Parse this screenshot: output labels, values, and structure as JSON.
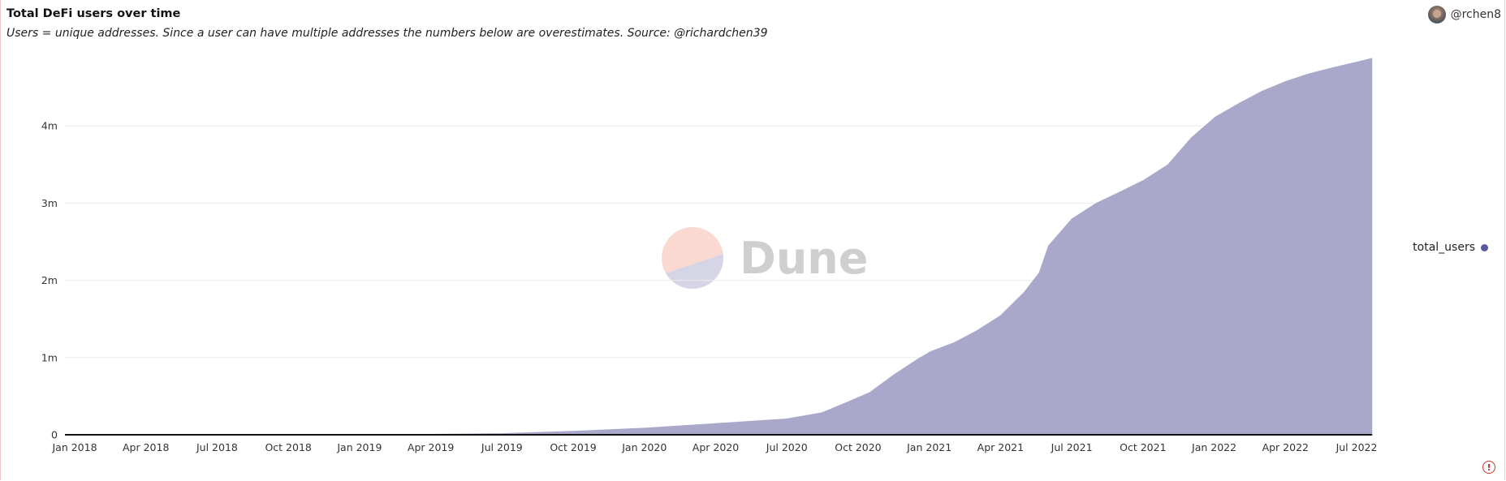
{
  "header": {
    "title": "Total DeFi users over time",
    "subtitle": "Users = unique addresses. Since a user can have multiple addresses the numbers below are overestimates. Source: @richardchen39",
    "author": "@rchen8"
  },
  "watermark": {
    "text": "Dune"
  },
  "legend": {
    "label": "total_users"
  },
  "colors": {
    "area": "#a9a8cb",
    "legend_dot": "#5b5b9e",
    "gridline": "#ececec",
    "baseline": "#111111",
    "alert": "#c0392b"
  },
  "chart_data": {
    "type": "area",
    "title": "Total DeFi users over time",
    "xlabel": "",
    "ylabel": "",
    "x_ticks": [
      "Jan 2018",
      "Apr 2018",
      "Jul 2018",
      "Oct 2018",
      "Jan 2019",
      "Apr 2019",
      "Jul 2019",
      "Oct 2019",
      "Jan 2020",
      "Apr 2020",
      "Jul 2020",
      "Oct 2020",
      "Jan 2021",
      "Apr 2021",
      "Jul 2021",
      "Oct 2021",
      "Jan 2022",
      "Apr 2022",
      "Jul 2022"
    ],
    "y_ticks": [
      "0",
      "1m",
      "2m",
      "3m",
      "4m"
    ],
    "y_tick_values": [
      0,
      1000000,
      2000000,
      3000000,
      4000000
    ],
    "ylim": [
      0,
      5000000
    ],
    "grid": true,
    "legend_position": "right",
    "series": [
      {
        "name": "total_users",
        "points": [
          [
            "2018-01-01",
            0
          ],
          [
            "2018-04-01",
            1000
          ],
          [
            "2018-07-01",
            2000
          ],
          [
            "2018-10-01",
            3000
          ],
          [
            "2019-01-01",
            5000
          ],
          [
            "2019-04-01",
            10000
          ],
          [
            "2019-07-01",
            20000
          ],
          [
            "2019-10-01",
            50000
          ],
          [
            "2020-01-01",
            90000
          ],
          [
            "2020-04-01",
            150000
          ],
          [
            "2020-07-01",
            210000
          ],
          [
            "2020-08-15",
            290000
          ],
          [
            "2020-09-15",
            420000
          ],
          [
            "2020-10-15",
            550000
          ],
          [
            "2020-11-15",
            780000
          ],
          [
            "2020-12-15",
            980000
          ],
          [
            "2021-01-01",
            1080000
          ],
          [
            "2021-02-01",
            1200000
          ],
          [
            "2021-03-01",
            1350000
          ],
          [
            "2021-04-01",
            1550000
          ],
          [
            "2021-05-01",
            1850000
          ],
          [
            "2021-05-20",
            2100000
          ],
          [
            "2021-06-01",
            2450000
          ],
          [
            "2021-07-01",
            2800000
          ],
          [
            "2021-08-01",
            3000000
          ],
          [
            "2021-09-01",
            3150000
          ],
          [
            "2021-10-01",
            3300000
          ],
          [
            "2021-11-01",
            3500000
          ],
          [
            "2021-12-01",
            3850000
          ],
          [
            "2022-01-01",
            4120000
          ],
          [
            "2022-02-01",
            4300000
          ],
          [
            "2022-03-01",
            4450000
          ],
          [
            "2022-04-01",
            4580000
          ],
          [
            "2022-05-01",
            4680000
          ],
          [
            "2022-06-01",
            4760000
          ],
          [
            "2022-07-01",
            4830000
          ],
          [
            "2022-07-21",
            4880000
          ]
        ]
      }
    ]
  }
}
